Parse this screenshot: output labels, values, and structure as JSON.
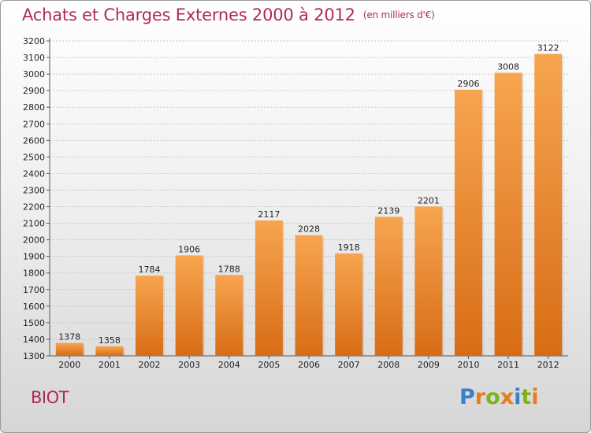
{
  "title": "Achats et Charges Externes 2000 à 2012",
  "subtitle": "(en milliers d'€)",
  "commune": "BIOT",
  "logo": {
    "text": "Proxiti",
    "letters": [
      "P",
      "r",
      "o",
      "x",
      "i",
      "t",
      "i"
    ],
    "colors": [
      "#3a7fcc",
      "#e87b1c",
      "#7ab51d",
      "#e87b1c",
      "#3a7fcc",
      "#7ab51d",
      "#e87b1c"
    ]
  },
  "colors": {
    "title": "#b02a58",
    "bar_light": "#f7a550",
    "bar_dark": "#d86c16"
  },
  "chart_data": {
    "type": "bar",
    "categories": [
      "2000",
      "2001",
      "2002",
      "2003",
      "2004",
      "2005",
      "2006",
      "2007",
      "2008",
      "2009",
      "2010",
      "2011",
      "2012"
    ],
    "values": [
      1378,
      1358,
      1784,
      1906,
      1788,
      2117,
      2028,
      1918,
      2139,
      2201,
      2906,
      3008,
      3122
    ],
    "value_labels": [
      "1378",
      "1358",
      "1784",
      "1906",
      "1788",
      "2117",
      "2028",
      "1918",
      "2139",
      "2201",
      "2906",
      "3008",
      "3122"
    ],
    "yticks": [
      "1300",
      "1400",
      "1500",
      "1600",
      "1700",
      "1800",
      "1900",
      "2000",
      "2100",
      "2200",
      "2300",
      "2400",
      "2500",
      "2600",
      "2700",
      "2800",
      "2900",
      "3000",
      "3100",
      "3200"
    ],
    "ylim": [
      1300,
      3200
    ],
    "grid": true,
    "xlabel": "",
    "ylabel": ""
  }
}
